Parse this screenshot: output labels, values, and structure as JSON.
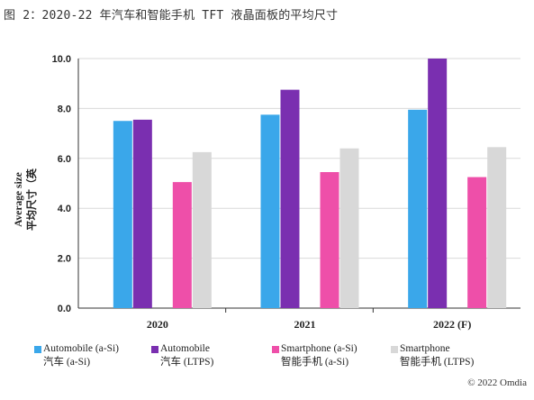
{
  "figure_title": "图 2：2020-22 年汽车和智能手机 TFT 液晶面板的平均尺寸",
  "credit": "© 2022 Omdia",
  "colors": {
    "automobile_asi": "#3aa7ea",
    "automobile_ltps": "#7a2fb0",
    "smartphone_asi": "#ee4fa9",
    "smartphone_ltps": "#d8d8d8",
    "axis": "#333333",
    "grid": "#d9d9d9"
  },
  "chart_data": {
    "type": "bar",
    "title": "",
    "ylabel_line1": "Average size",
    "ylabel_line2": "平均尺寸（英",
    "ylim": [
      0,
      10
    ],
    "yticks": [
      "0.0",
      "2.0",
      "4.0",
      "6.0",
      "8.0",
      "10.0"
    ],
    "grid": true,
    "legend_position": "bottom",
    "categories": [
      "2020",
      "2021",
      "2022 (F)"
    ],
    "series": [
      {
        "key": "automobile_asi",
        "name": "Automobile (a-Si)",
        "name_cn": "汽车 (a-Si)",
        "values": [
          7.5,
          7.75,
          7.95
        ]
      },
      {
        "key": "automobile_ltps",
        "name": "Automobile",
        "name_cn": "汽车 (LTPS)",
        "values": [
          7.55,
          8.75,
          10.0
        ]
      },
      {
        "key": "smartphone_asi",
        "name": "Smartphone (a-Si)",
        "name_cn": "智能手机 (a-Si)",
        "values": [
          5.05,
          5.45,
          5.25
        ]
      },
      {
        "key": "smartphone_ltps",
        "name": "Smartphone",
        "name_cn": "智能手机 (LTPS)",
        "values": [
          6.25,
          6.4,
          6.45
        ]
      }
    ]
  }
}
